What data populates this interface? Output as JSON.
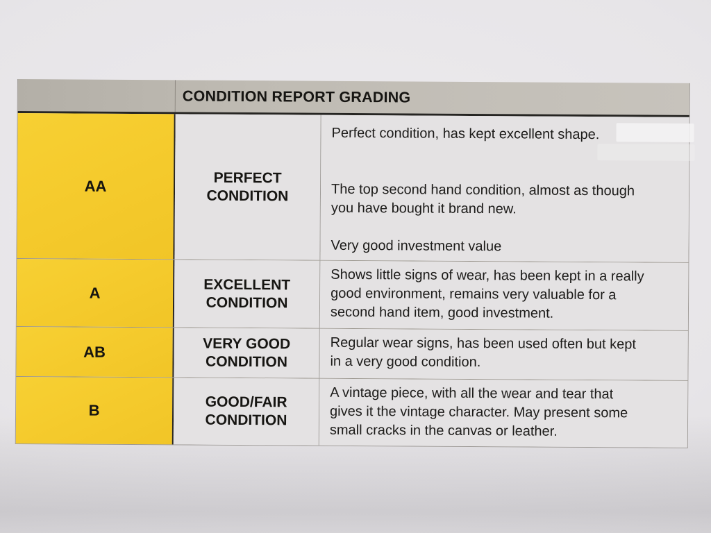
{
  "document": {
    "header": {
      "title": "CONDITION REPORT GRADING"
    },
    "rows": [
      {
        "grade": "AA",
        "condition_lines": [
          "PERFECT",
          "CONDITION"
        ],
        "description_lines": [
          "Perfect condition, has kept excellent shape.",
          "",
          "",
          "The top second hand condition, almost as though",
          "you have bought it brand new.",
          "",
          "Very good investment value"
        ]
      },
      {
        "grade": "A",
        "condition_lines": [
          "EXCELLENT",
          "CONDITION"
        ],
        "description_lines": [
          "Shows little signs of wear, has been kept in a really",
          "good environment, remains very valuable for a",
          "second hand item, good investment."
        ]
      },
      {
        "grade": "AB",
        "condition_lines": [
          "VERY GOOD",
          "CONDITION"
        ],
        "description_lines": [
          "Regular wear signs, has been used often but kept",
          "in a very good condition."
        ]
      },
      {
        "grade": "B",
        "condition_lines": [
          "GOOD/FAIR",
          "CONDITION"
        ],
        "description_lines": [
          "A vintage piece, with all the wear and tear that",
          "gives it the vintage character. May present some",
          "small cracks in the canvas or leather."
        ]
      }
    ],
    "colors": {
      "grade_column_yellow": "#f5cb2d",
      "header_gray": "#bfbbb3",
      "cell_gray": "#e4e2e3",
      "text_black": "#1b1a18"
    }
  }
}
